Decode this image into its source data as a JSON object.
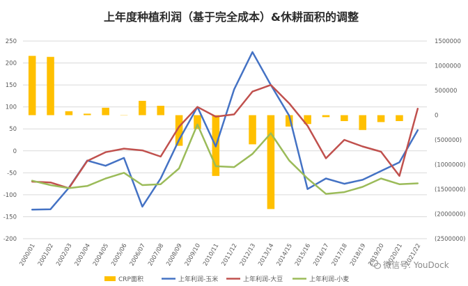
{
  "chart_data": {
    "type": "bar+line",
    "title": "上年度种植利润（基于完全成本）&休耕面积的调整",
    "categories": [
      "2000/01",
      "2001/02",
      "2002/03",
      "2003/04",
      "2004/05",
      "2005/06",
      "2006/07",
      "2007/08",
      "2008/09",
      "2009/10",
      "2010/11",
      "2011/12",
      "2012/13",
      "2013/14",
      "2014/15",
      "2015/16",
      "2016/17",
      "2017/18",
      "2018/19",
      "2019/20",
      "2020/21",
      "2021/22"
    ],
    "left_axis": {
      "min": -200,
      "max": 250,
      "step": 50,
      "ticks": [
        "250",
        "200",
        "150",
        "100",
        "50",
        "0",
        "-50",
        "-100",
        "-150",
        "-200"
      ]
    },
    "right_axis": {
      "min": -2500000,
      "max": 1500000,
      "step": 500000,
      "ticks": [
        "1500000",
        "1000000",
        "500000",
        "0",
        "(500000)",
        "(1000000)",
        "(1500000)",
        "(2000000)",
        "(2500000)"
      ]
    },
    "bar_series": {
      "name": "CRP面积",
      "color": "#FFC000",
      "axis": "right",
      "values": [
        1200000,
        1180000,
        80000,
        30000,
        150000,
        5000,
        290000,
        190000,
        -620000,
        -280000,
        -1230000,
        0,
        -590000,
        -1900000,
        -230000,
        -180000,
        -40000,
        -120000,
        -300000,
        -140000,
        -120000,
        0
      ]
    },
    "line_series": [
      {
        "name": "上年利润-玉米",
        "color": "#4472C4",
        "axis": "left",
        "values": [
          -134,
          -133,
          -84,
          -22,
          -34,
          -16,
          -127,
          -63,
          25,
          100,
          10,
          140,
          225,
          150,
          80,
          -87,
          -63,
          -75,
          -66,
          -46,
          -26,
          47
        ]
      },
      {
        "name": "上年利润-大豆",
        "color": "#C0504D",
        "axis": "left",
        "values": [
          -70,
          -72,
          -85,
          -23,
          -3,
          5,
          1,
          -13,
          55,
          100,
          78,
          83,
          135,
          150,
          108,
          57,
          -17,
          25,
          10,
          -2,
          -57,
          96
        ]
      },
      {
        "name": "上年利润-小麦",
        "color": "#9BBB59",
        "axis": "left",
        "values": [
          -68,
          -78,
          -85,
          -80,
          -63,
          -50,
          -78,
          -76,
          -40,
          60,
          -35,
          -37,
          -7,
          40,
          -22,
          -63,
          -98,
          -94,
          -82,
          -63,
          -76,
          -74
        ]
      }
    ],
    "legend_position": "bottom",
    "grid": true
  },
  "watermark": {
    "icon": "wechat-icon",
    "text": "微信号: YouDock"
  }
}
